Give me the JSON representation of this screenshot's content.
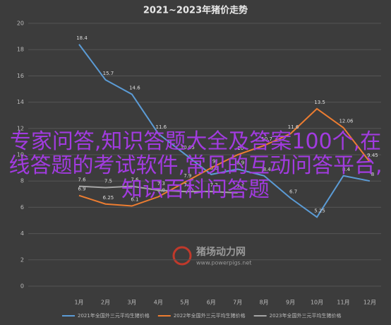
{
  "chart_data": {
    "type": "line",
    "title": "2021~2023年猪价走势",
    "categories": [
      "1月",
      "2月",
      "3月",
      "4月",
      "5月",
      "6月",
      "7月",
      "8月",
      "9月",
      "10月",
      "11月",
      "12月"
    ],
    "ylim": [
      0,
      20
    ],
    "yticks": [
      0,
      2,
      4,
      6,
      8,
      10,
      12,
      14,
      16,
      18,
      20
    ],
    "grid": true,
    "legend": "bottom",
    "series": [
      {
        "name": "2021年全国外三元平均生猪价格",
        "color": "#5b9bd5",
        "values": [
          18.4,
          15.7,
          14.6,
          11.6,
          10.05,
          8.5,
          8.9,
          8.4,
          6.7,
          5.25,
          8.4,
          8.0
        ]
      },
      {
        "name": "2022年全国外三元平均生猪价格",
        "color": "#ed7d31",
        "values": [
          6.9,
          6.25,
          6.1,
          6.8,
          7.9,
          9.0,
          10.0,
          10.7,
          11.6,
          13.5,
          12.06,
          9.45
        ]
      },
      {
        "name": "2023年全国外三元平均生猪价格",
        "color": "#a5a5a5",
        "values": [
          7.6,
          7.5,
          7.6,
          7.3,
          7.2,
          7.2,
          7.1,
          null,
          null,
          null,
          null,
          null
        ]
      }
    ]
  },
  "overlay_text": "专家问答,知识答题大全及答案100个,在线答题的考试软件,常见的互动问答平台,知识百科问答题",
  "watermark": {
    "name": "猪场动力网",
    "url": "www.powerpigs.net"
  }
}
